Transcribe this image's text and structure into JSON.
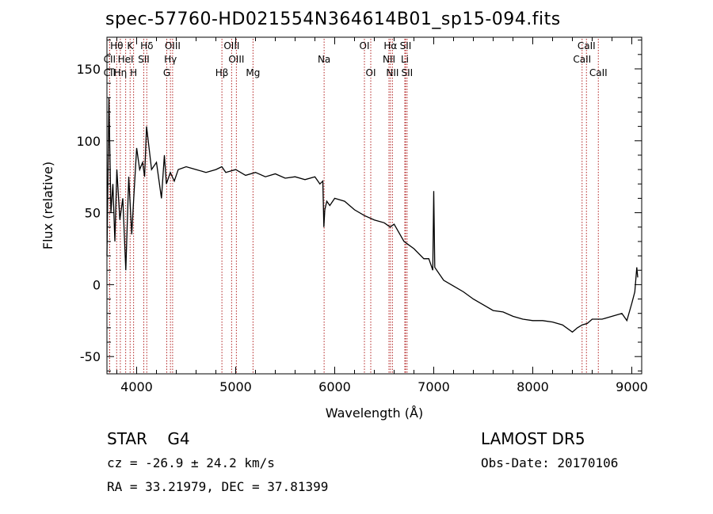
{
  "header": {
    "title": "spec-57760-HD021554N364614B01_sp15-094.fits"
  },
  "footer": {
    "obj_class": "STAR",
    "subclass": "G4",
    "survey": "LAMOST  DR5",
    "cz": "cz = -26.9 ± 24.2 km/s",
    "obs_date": "Obs-Date: 20170106",
    "radec": "RA =  33.21979, DEC =  37.81399"
  },
  "chart_data": {
    "type": "line",
    "title": "spec-57760-HD021554N364614B01_sp15-094.fits",
    "xlabel": "Wavelength (Å)",
    "ylabel": "Flux (relative)",
    "xlim": [
      3700,
      9100
    ],
    "ylim": [
      -62,
      172
    ],
    "xticks": [
      4000,
      5000,
      6000,
      7000,
      8000,
      9000
    ],
    "yticks": [
      -50,
      0,
      50,
      100,
      150
    ],
    "grid": false,
    "line_color": "#000000",
    "marker_color": "#b22222",
    "spectrum": {
      "x": [
        3700,
        3720,
        3740,
        3760,
        3780,
        3800,
        3830,
        3860,
        3890,
        3920,
        3950,
        3970,
        4000,
        4030,
        4060,
        4080,
        4100,
        4150,
        4200,
        4250,
        4280,
        4300,
        4340,
        4380,
        4420,
        4500,
        4600,
        4700,
        4800,
        4860,
        4900,
        5000,
        5100,
        5200,
        5300,
        5400,
        5500,
        5600,
        5700,
        5800,
        5850,
        5880,
        5890,
        5900,
        5920,
        5950,
        6000,
        6100,
        6200,
        6300,
        6400,
        6500,
        6560,
        6600,
        6700,
        6800,
        6900,
        6950,
        6990,
        7000,
        7010,
        7050,
        7100,
        7200,
        7300,
        7400,
        7500,
        7600,
        7700,
        7800,
        7900,
        8000,
        8100,
        8200,
        8300,
        8400,
        8450,
        8500,
        8550,
        8600,
        8700,
        8800,
        8900,
        8950,
        9000,
        9030,
        9050,
        9060
      ],
      "y": [
        20,
        130,
        50,
        70,
        30,
        80,
        45,
        60,
        10,
        75,
        35,
        60,
        95,
        80,
        85,
        75,
        110,
        80,
        85,
        60,
        90,
        70,
        78,
        72,
        80,
        82,
        80,
        78,
        80,
        82,
        78,
        80,
        76,
        78,
        75,
        77,
        74,
        75,
        73,
        75,
        70,
        72,
        40,
        52,
        58,
        55,
        60,
        58,
        52,
        48,
        45,
        43,
        40,
        42,
        30,
        25,
        18,
        18,
        10,
        65,
        12,
        8,
        3,
        -1,
        -5,
        -10,
        -14,
        -18,
        -19,
        -22,
        -24,
        -25,
        -25,
        -26,
        -28,
        -33,
        -30,
        -28,
        -27,
        -24,
        -24,
        -22,
        -20,
        -25,
        -13,
        -5,
        12,
        5
      ]
    },
    "line_markers": [
      {
        "label": "Hθ",
        "x": 3798,
        "row": 1
      },
      {
        "label": "CII",
        "x": 3727,
        "row": 2
      },
      {
        "label": "CII",
        "x": 3727,
        "row": 3
      },
      {
        "label": "K",
        "x": 3934,
        "row": 1
      },
      {
        "label": "HeI",
        "x": 3889,
        "row": 2
      },
      {
        "label": "Hη",
        "x": 3835,
        "row": 3
      },
      {
        "label": "H",
        "x": 3969,
        "row": 3
      },
      {
        "label": "Hδ",
        "x": 4102,
        "row": 1
      },
      {
        "label": "SII",
        "x": 4072,
        "row": 2
      },
      {
        "label": "OIII",
        "x": 4363,
        "row": 1
      },
      {
        "label": "Hγ",
        "x": 4341,
        "row": 2
      },
      {
        "label": "G",
        "x": 4304,
        "row": 3
      },
      {
        "label": "OIII",
        "x": 4959,
        "row": 1
      },
      {
        "label": "OIII",
        "x": 5007,
        "row": 2
      },
      {
        "label": "Hβ",
        "x": 4861,
        "row": 3
      },
      {
        "label": "Mg",
        "x": 5175,
        "row": 3
      },
      {
        "label": "Na",
        "x": 5893,
        "row": 2
      },
      {
        "label": "OI",
        "x": 6300,
        "row": 1
      },
      {
        "label": "OI",
        "x": 6364,
        "row": 3
      },
      {
        "label": "Hα",
        "x": 6563,
        "row": 1
      },
      {
        "label": "NII",
        "x": 6548,
        "row": 2
      },
      {
        "label": "NII",
        "x": 6583,
        "row": 3
      },
      {
        "label": "SII",
        "x": 6716,
        "row": 1
      },
      {
        "label": "Li",
        "x": 6708,
        "row": 2
      },
      {
        "label": "SII",
        "x": 6731,
        "row": 3
      },
      {
        "label": "CaII",
        "x": 8542,
        "row": 1
      },
      {
        "label": "CaII",
        "x": 8498,
        "row": 2
      },
      {
        "label": "CaII",
        "x": 8662,
        "row": 3
      }
    ]
  }
}
